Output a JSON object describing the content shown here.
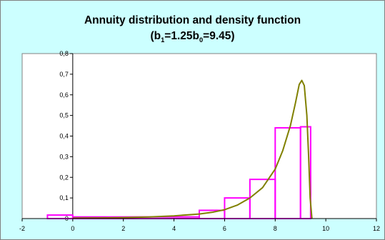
{
  "chart_data": {
    "type": "line",
    "title_line1": "Annuity distribution and density function",
    "title_line2_parts": [
      "(b",
      "1",
      "=1.25b",
      "0",
      "=9.45)"
    ],
    "xlabel": "",
    "ylabel": "",
    "xlim": [
      -2,
      12
    ],
    "ylim": [
      0,
      0.8
    ],
    "x_ticks": [
      -2,
      0,
      2,
      4,
      6,
      8,
      10,
      12
    ],
    "y_ticks": [
      {
        "v": 0,
        "label": "0"
      },
      {
        "v": 0.1,
        "label": "0,1"
      },
      {
        "v": 0.2,
        "label": "0,2"
      },
      {
        "v": 0.3,
        "label": "0,3"
      },
      {
        "v": 0.4,
        "label": "0,4"
      },
      {
        "v": 0.5,
        "label": "0,5"
      },
      {
        "v": 0.6,
        "label": "0,6"
      },
      {
        "v": 0.7,
        "label": "0,7"
      },
      {
        "v": 0.8,
        "label": "0,8"
      }
    ],
    "grid": false,
    "legend": "none",
    "plot_background": "#ffffff",
    "series": [
      {
        "kind": "histogram",
        "color": "#ff00ff",
        "bars": [
          {
            "x0": -1,
            "x1": 0,
            "y": 0.017
          },
          {
            "x0": 0,
            "x1": 5,
            "y": 0.008
          },
          {
            "x0": 5,
            "x1": 6,
            "y": 0.04
          },
          {
            "x0": 6,
            "x1": 7,
            "y": 0.1
          },
          {
            "x0": 7,
            "x1": 8,
            "y": 0.19
          },
          {
            "x0": 8,
            "x1": 9,
            "y": 0.44
          },
          {
            "x0": 9,
            "x1": 9.4,
            "y": 0.445
          }
        ]
      },
      {
        "kind": "density",
        "color": "#808000",
        "x": [
          0,
          1,
          2,
          3,
          4,
          5,
          5.5,
          6,
          6.5,
          7,
          7.5,
          8,
          8.3,
          8.6,
          8.8,
          8.95,
          9.05,
          9.15,
          9.25,
          9.32,
          9.38,
          9.45
        ],
        "y": [
          0.002,
          0.003,
          0.005,
          0.008,
          0.013,
          0.022,
          0.03,
          0.043,
          0.065,
          0.1,
          0.15,
          0.24,
          0.33,
          0.45,
          0.56,
          0.65,
          0.67,
          0.645,
          0.5,
          0.3,
          0.1,
          0.0
        ]
      }
    ]
  }
}
